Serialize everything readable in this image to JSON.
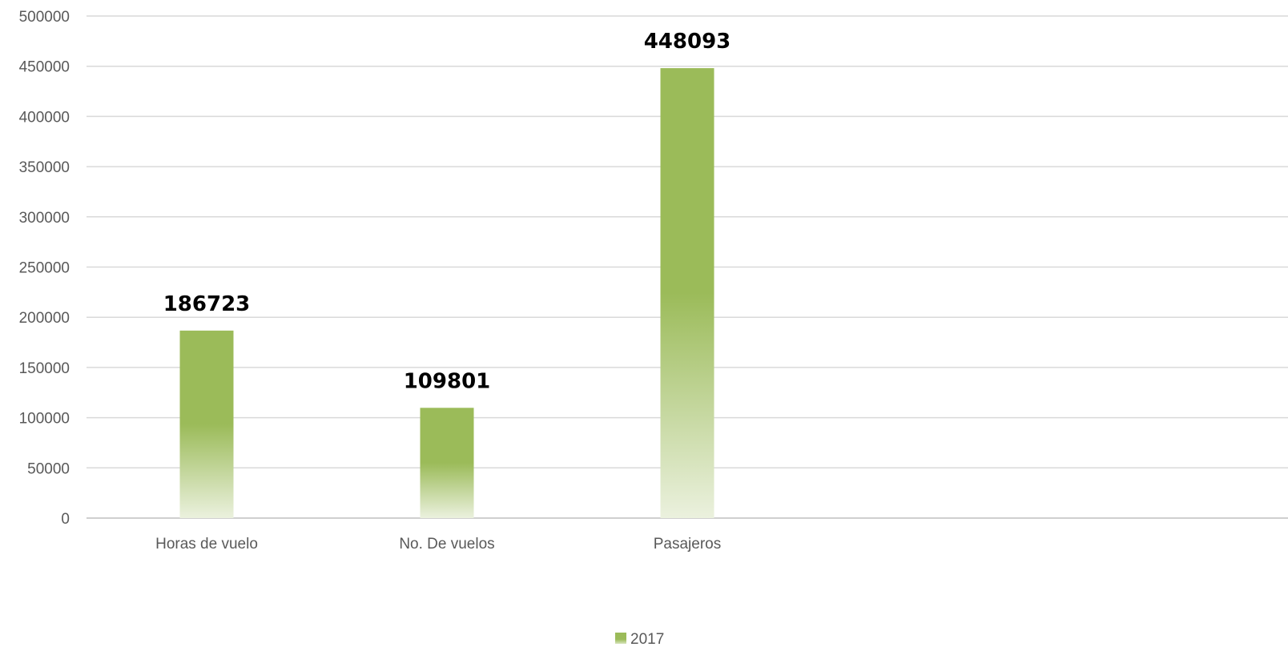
{
  "chart_data": {
    "type": "bar",
    "categories": [
      "Horas de vuelo",
      "No. De vuelos",
      "Pasajeros"
    ],
    "series": [
      {
        "name": "2017",
        "values": [
          186723,
          109801,
          448093
        ],
        "color": "#9bbb59"
      }
    ],
    "data_labels": [
      "186723",
      "109801",
      "448093"
    ],
    "ylim": [
      0,
      500000
    ],
    "yticks": [
      0,
      50000,
      100000,
      150000,
      200000,
      250000,
      300000,
      350000,
      400000,
      450000,
      500000
    ],
    "ytick_labels": [
      "0",
      "50000",
      "100000",
      "150000",
      "200000",
      "250000",
      "300000",
      "350000",
      "400000",
      "450000",
      "500000"
    ],
    "grid": true,
    "legend_position": "bottom",
    "title": "",
    "xlabel": "",
    "ylabel": ""
  }
}
